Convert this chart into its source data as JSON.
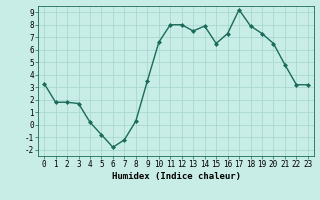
{
  "x": [
    0,
    1,
    2,
    3,
    4,
    5,
    6,
    7,
    8,
    9,
    10,
    11,
    12,
    13,
    14,
    15,
    16,
    17,
    18,
    19,
    20,
    21,
    22,
    23
  ],
  "y": [
    3.3,
    1.8,
    1.8,
    1.7,
    0.2,
    -0.8,
    -1.8,
    -1.2,
    0.3,
    3.5,
    6.6,
    8.0,
    8.0,
    7.5,
    7.9,
    6.5,
    7.3,
    9.2,
    7.9,
    7.3,
    6.5,
    4.8,
    3.2,
    3.2
  ],
  "line_color": "#1a6b5a",
  "marker": "D",
  "marker_size": 2,
  "linewidth": 1.0,
  "xlabel": "Humidex (Indice chaleur)",
  "xlabel_fontsize": 6.5,
  "xlim": [
    -0.5,
    23.5
  ],
  "ylim": [
    -2.5,
    9.5
  ],
  "yticks": [
    -2,
    -1,
    0,
    1,
    2,
    3,
    4,
    5,
    6,
    7,
    8,
    9
  ],
  "xticks": [
    0,
    1,
    2,
    3,
    4,
    5,
    6,
    7,
    8,
    9,
    10,
    11,
    12,
    13,
    14,
    15,
    16,
    17,
    18,
    19,
    20,
    21,
    22,
    23
  ],
  "grid_color": "#aad8d0",
  "bg_color": "#c8ece6",
  "tick_fontsize": 5.5
}
